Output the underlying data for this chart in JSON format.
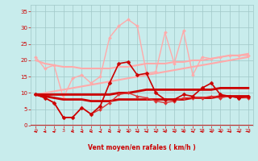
{
  "xlabel": "Vent moyen/en rafales ( km/h )",
  "background_color": "#c8ecec",
  "grid_color": "#a0c8c8",
  "text_color": "#cc0000",
  "xlim": [
    -0.5,
    23.5
  ],
  "ylim": [
    0,
    37
  ],
  "yticks": [
    0,
    5,
    10,
    15,
    20,
    25,
    30,
    35
  ],
  "xticks": [
    0,
    1,
    2,
    3,
    4,
    5,
    6,
    7,
    8,
    9,
    10,
    11,
    12,
    13,
    14,
    15,
    16,
    17,
    18,
    19,
    20,
    21,
    22,
    23
  ],
  "lines": [
    {
      "y": [
        21,
        17.5,
        18.5,
        8.5,
        14.5,
        15.5,
        13,
        15,
        27,
        30.5,
        32.5,
        30.5,
        16,
        16.5,
        28.5,
        19,
        29,
        15.5,
        21,
        20.5,
        21,
        21.5,
        21.5,
        21.5
      ],
      "color": "#ffaaaa",
      "lw": 1.0,
      "marker": "D",
      "ms": 2.0,
      "zorder": 3
    },
    {
      "y": [
        20,
        19,
        18.5,
        18,
        18,
        17.5,
        17.5,
        17.5,
        17.5,
        18,
        18,
        18.5,
        19,
        19,
        19,
        19.5,
        19.5,
        20,
        20,
        20.5,
        21,
        21.5,
        21.5,
        22
      ],
      "color": "#ffaaaa",
      "lw": 1.5,
      "marker": null,
      "ms": 0,
      "zorder": 2
    },
    {
      "y": [
        9.5,
        10,
        10.5,
        11,
        11.5,
        12,
        12.5,
        13,
        13.5,
        14,
        14.5,
        15,
        15.5,
        16,
        16.5,
        17,
        17.5,
        18,
        18.5,
        19,
        19.5,
        20,
        20.5,
        21
      ],
      "color": "#ffaaaa",
      "lw": 1.5,
      "marker": null,
      "ms": 0,
      "zorder": 2
    },
    {
      "y": [
        9.5,
        8.5,
        7,
        2.5,
        2.5,
        5.5,
        3.5,
        6,
        13,
        19,
        19.5,
        15.5,
        16,
        10,
        8,
        8,
        9.5,
        9,
        11.5,
        13,
        9.5,
        9,
        8.5,
        9
      ],
      "color": "#cc0000",
      "lw": 1.2,
      "marker": "D",
      "ms": 2.5,
      "zorder": 5
    },
    {
      "y": [
        9.5,
        8.5,
        7,
        2.5,
        2.5,
        5.5,
        3.5,
        5,
        7,
        9.5,
        10,
        9,
        8.5,
        7.5,
        7,
        7.5,
        8.5,
        8.5,
        8.5,
        9,
        8.5,
        9,
        8.5,
        8.5
      ],
      "color": "#dd3333",
      "lw": 1.0,
      "marker": "D",
      "ms": 2.0,
      "zorder": 4
    },
    {
      "y": [
        9.5,
        9,
        8.5,
        8,
        8,
        8,
        7.5,
        7.5,
        7.5,
        8,
        8,
        8,
        8,
        8,
        8,
        8,
        8,
        8.5,
        8.5,
        8.5,
        9,
        9,
        9,
        9
      ],
      "color": "#cc0000",
      "lw": 2.0,
      "marker": null,
      "ms": 0,
      "zorder": 3
    },
    {
      "y": [
        9.5,
        9.5,
        9.5,
        9.5,
        9.5,
        9.5,
        9.5,
        9.5,
        9.5,
        10,
        10,
        10.5,
        11,
        11,
        11,
        11,
        11,
        11,
        11,
        11,
        11.5,
        11.5,
        11.5,
        11.5
      ],
      "color": "#cc0000",
      "lw": 2.0,
      "marker": null,
      "ms": 0,
      "zorder": 3
    }
  ],
  "arrow_angles": [
    225,
    225,
    270,
    180,
    225,
    225,
    315,
    225,
    225,
    225,
    225,
    225,
    225,
    225,
    225,
    225,
    315,
    315,
    225,
    225,
    225,
    225,
    225,
    225
  ]
}
